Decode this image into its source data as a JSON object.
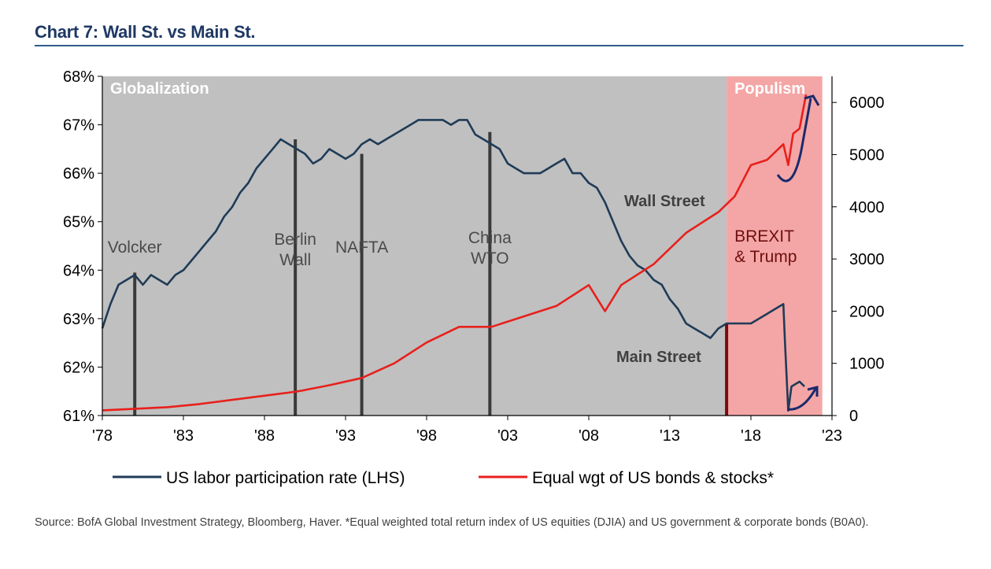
{
  "title": "Chart 7: Wall St. vs Main St.",
  "source": "Source: BofA Global Investment Strategy, Bloomberg, Haver. *Equal weighted total return index of US equities (DJIA) and US government & corporate bonds (B0A0).",
  "chart_data": {
    "type": "line",
    "title": "Chart 7: Wall St. vs Main St.",
    "xlim": [
      1978,
      2023
    ],
    "x_ticks": [
      "'78",
      "'83",
      "'88",
      "'93",
      "'98",
      "'03",
      "'08",
      "'13",
      "'18",
      "'23"
    ],
    "x_tick_values": [
      1978,
      1983,
      1988,
      1993,
      1998,
      2003,
      2008,
      2013,
      2018,
      2023
    ],
    "y_left": {
      "range": [
        61,
        68
      ],
      "ticks": [
        "61%",
        "62%",
        "63%",
        "64%",
        "65%",
        "66%",
        "67%",
        "68%"
      ],
      "tick_values": [
        61,
        62,
        63,
        64,
        65,
        66,
        67,
        68
      ]
    },
    "y_right": {
      "range": [
        0,
        6500
      ],
      "ticks": [
        "0",
        "1000",
        "2000",
        "3000",
        "4000",
        "5000",
        "6000"
      ],
      "tick_values": [
        0,
        1000,
        2000,
        3000,
        4000,
        5000,
        6000
      ]
    },
    "regions": [
      {
        "label": "Globalization",
        "start": 1978,
        "end": 2016.5,
        "color": "#c0c0c0"
      },
      {
        "label": "Populism",
        "start": 2016.5,
        "end": 2022.4,
        "color": "#f4a6a6"
      }
    ],
    "events": [
      {
        "label": "Volcker",
        "x": 1980
      },
      {
        "label": "Berlin Wall",
        "lines": [
          "Berlin",
          "Wall"
        ],
        "x": 1989.9
      },
      {
        "label": "NAFTA",
        "x": 1994
      },
      {
        "label": "China WTO",
        "lines": [
          "China",
          "WTO"
        ],
        "x": 2001.9
      },
      {
        "label": "BREXIT & Trump",
        "lines": [
          "BREXIT",
          "& Trump"
        ],
        "x": 2016.5
      }
    ],
    "annotations": [
      "Wall Street",
      "Main Street"
    ],
    "legend_position": "bottom",
    "series": [
      {
        "name": "US labor participation rate (LHS)",
        "axis": "left",
        "color": "#1f3b57",
        "x": [
          1978,
          1978.5,
          1979,
          1979.5,
          1980,
          1980.5,
          1981,
          1981.5,
          1982,
          1982.5,
          1983,
          1983.5,
          1984,
          1984.5,
          1985,
          1985.5,
          1986,
          1986.5,
          1987,
          1987.5,
          1988,
          1988.5,
          1989,
          1989.5,
          1990,
          1990.5,
          1991,
          1991.5,
          1992,
          1992.5,
          1993,
          1993.5,
          1994,
          1994.5,
          1995,
          1995.5,
          1996,
          1996.5,
          1997,
          1997.5,
          1998,
          1998.5,
          1999,
          1999.5,
          2000,
          2000.5,
          2001,
          2001.5,
          2002,
          2002.5,
          2003,
          2003.5,
          2004,
          2004.5,
          2005,
          2005.5,
          2006,
          2006.5,
          2007,
          2007.5,
          2008,
          2008.5,
          2009,
          2009.5,
          2010,
          2010.5,
          2011,
          2011.5,
          2012,
          2012.5,
          2013,
          2013.5,
          2014,
          2014.5,
          2015,
          2015.5,
          2016,
          2016.5,
          2017,
          2017.5,
          2018,
          2018.5,
          2019,
          2019.5,
          2020,
          2020.1,
          2020.3,
          2020.5,
          2021,
          2021.3
        ],
        "values": [
          62.8,
          63.3,
          63.7,
          63.8,
          63.9,
          63.7,
          63.9,
          63.8,
          63.7,
          63.9,
          64.0,
          64.2,
          64.4,
          64.6,
          64.8,
          65.1,
          65.3,
          65.6,
          65.8,
          66.1,
          66.3,
          66.5,
          66.7,
          66.6,
          66.5,
          66.4,
          66.2,
          66.3,
          66.5,
          66.4,
          66.3,
          66.4,
          66.6,
          66.7,
          66.6,
          66.7,
          66.8,
          66.9,
          67.0,
          67.1,
          67.1,
          67.1,
          67.1,
          67.0,
          67.1,
          67.1,
          66.8,
          66.7,
          66.6,
          66.5,
          66.2,
          66.1,
          66.0,
          66.0,
          66.0,
          66.1,
          66.2,
          66.3,
          66.0,
          66.0,
          65.8,
          65.7,
          65.4,
          65.0,
          64.6,
          64.3,
          64.1,
          64.0,
          63.8,
          63.7,
          63.4,
          63.2,
          62.9,
          62.8,
          62.7,
          62.6,
          62.8,
          62.9,
          62.9,
          62.9,
          62.9,
          63.0,
          63.1,
          63.2,
          63.3,
          62.5,
          61.1,
          61.6,
          61.7,
          61.6
        ]
      },
      {
        "name": "Equal wgt of US bonds & stocks*",
        "axis": "right",
        "color": "#e8201c",
        "x": [
          1978,
          1980,
          1982,
          1984,
          1986,
          1988,
          1990,
          1992,
          1994,
          1996,
          1998,
          2000,
          2002,
          2004,
          2006,
          2008,
          2009,
          2010,
          2012,
          2014,
          2016,
          2017,
          2018,
          2019,
          2020,
          2020.3,
          2020.6,
          2021,
          2021.4
        ],
        "values": [
          100,
          130,
          160,
          220,
          300,
          380,
          460,
          580,
          720,
          1000,
          1400,
          1700,
          1700,
          1900,
          2100,
          2500,
          2000,
          2500,
          2900,
          3500,
          3900,
          4200,
          4800,
          4900,
          5200,
          4800,
          5400,
          5500,
          6150
        ]
      }
    ]
  }
}
